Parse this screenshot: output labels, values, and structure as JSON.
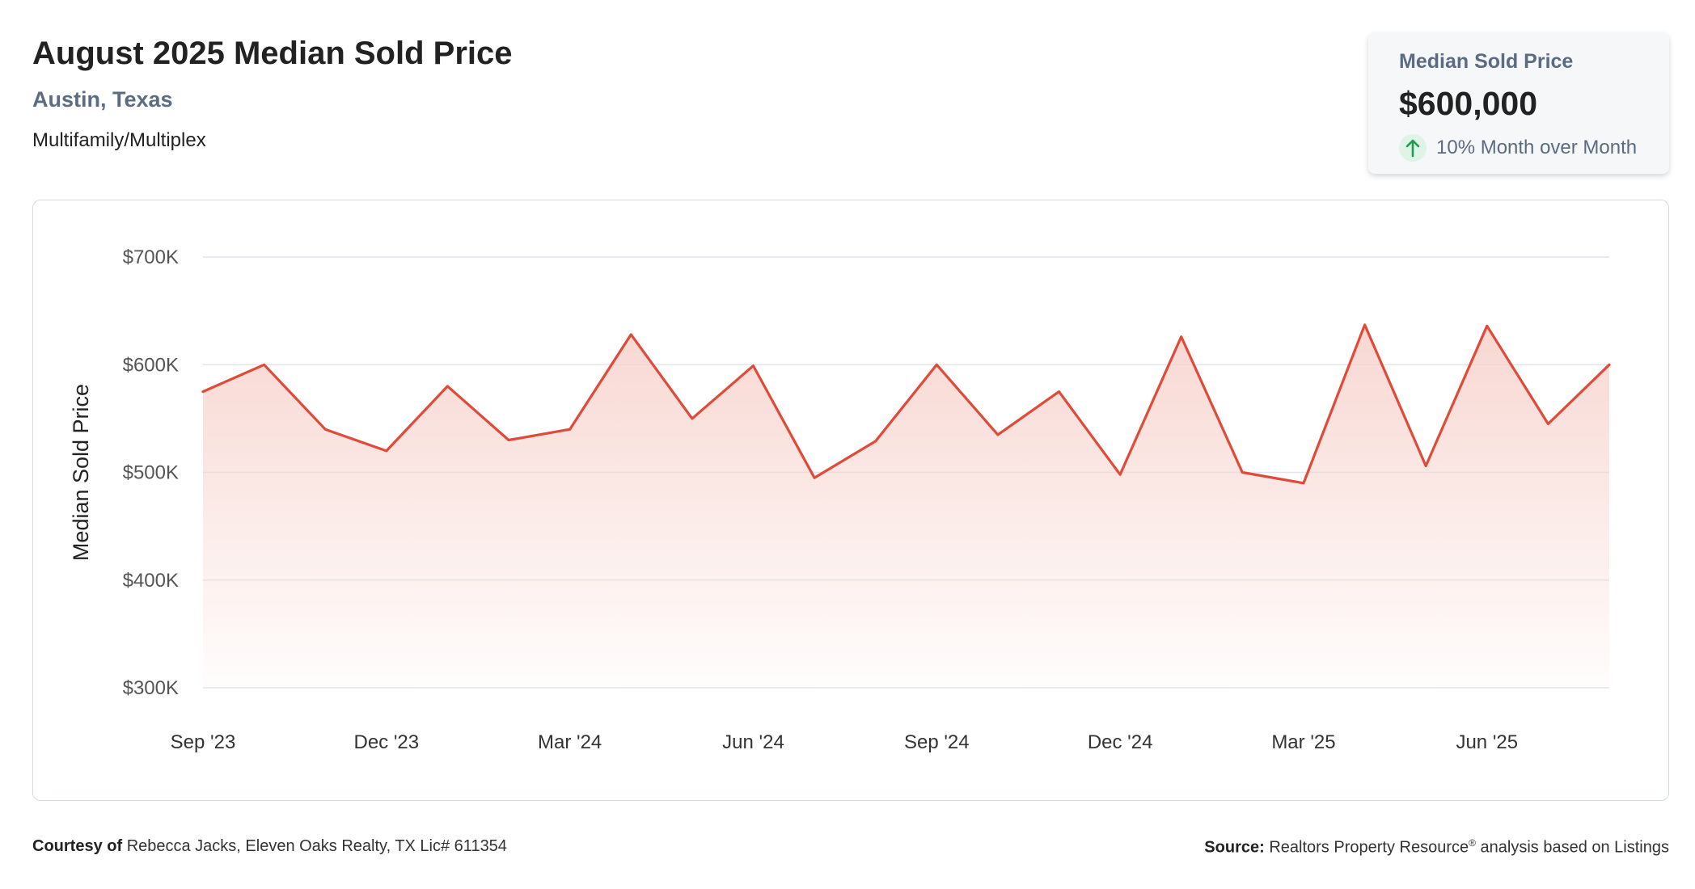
{
  "header": {
    "title": "August 2025 Median Sold Price",
    "location": "Austin, Texas",
    "property_type": "Multifamily/Multiplex"
  },
  "kpi": {
    "label": "Median Sold Price",
    "value": "$600,000",
    "change_text": "10% Month over Month",
    "change_icon": "arrow-up-icon",
    "up_color": "#1f9d55"
  },
  "colors": {
    "line": "#e04a38",
    "fill": "#f7d3cd",
    "grid": "#e2e6ea",
    "axis_text": "#555555"
  },
  "chart_data": {
    "type": "area",
    "ylabel": "Median Sold Price",
    "ylim": [
      300000,
      700000
    ],
    "y_ticks": [
      300000,
      400000,
      500000,
      600000,
      700000
    ],
    "y_tick_labels": [
      "$300K",
      "$400K",
      "$500K",
      "$600K",
      "$700K"
    ],
    "x_tick_labels": [
      "Sep '23",
      "Dec '23",
      "Mar '24",
      "Jun '24",
      "Sep '24",
      "Dec '24",
      "Mar '25",
      "Jun '25"
    ],
    "x_tick_indices": [
      0,
      3,
      6,
      9,
      12,
      15,
      18,
      21
    ],
    "grid": true,
    "legend": "none",
    "series": [
      {
        "values": [
          575000,
          600000,
          540000,
          520000,
          580000,
          530000,
          540000,
          628000,
          550000,
          599000,
          495000,
          529000,
          600000,
          535000,
          575000,
          498000,
          626000,
          500000,
          490000,
          637000,
          506000,
          636000,
          545000,
          600000
        ]
      }
    ]
  },
  "footer": {
    "courtesy_label": "Courtesy of",
    "courtesy_text": "Rebecca Jacks, Eleven Oaks Realty, TX Lic# 611354",
    "source_label": "Source:",
    "source_text": "Realtors Property Resource",
    "source_mark": "®",
    "source_suffix": "analysis based on Listings"
  }
}
